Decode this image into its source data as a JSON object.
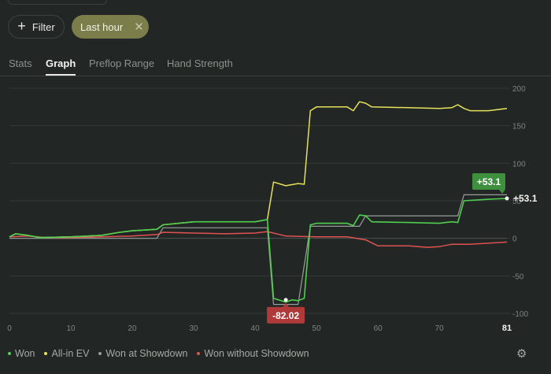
{
  "toolbar": {
    "filter_label": "Filter",
    "chip_label": "Last hour",
    "chip_close": "✕",
    "plus": "+"
  },
  "tabs": [
    {
      "label": "Stats",
      "active": false
    },
    {
      "label": "Graph",
      "active": true
    },
    {
      "label": "Preflop Range",
      "active": false
    },
    {
      "label": "Hand Strength",
      "active": false
    }
  ],
  "chart_data": {
    "type": "line",
    "xlim": [
      0,
      81
    ],
    "ylim": [
      -100,
      200
    ],
    "x_ticks": [
      "0",
      "10",
      "20",
      "30",
      "40",
      "50",
      "60",
      "70",
      "81"
    ],
    "y_ticks": [
      "200",
      "150",
      "100",
      "50",
      "0",
      "-50",
      "-100"
    ],
    "grid": true,
    "legend_position": "bottom-left",
    "annotations": [
      {
        "text": "+53.1",
        "x": 81,
        "y": 53.1,
        "color": "#3e8f3e"
      },
      {
        "text": "+53.1",
        "x": 81,
        "y": 53.1,
        "color": "none"
      },
      {
        "text": "-82.02",
        "x": 45,
        "y": -82.02,
        "color": "#b03a3a"
      }
    ],
    "series": [
      {
        "name": "Won at Showdown",
        "color": "#9a9e9a",
        "width": 1.2,
        "points": [
          [
            0,
            0
          ],
          [
            24,
            0
          ],
          [
            25,
            14
          ],
          [
            42,
            14
          ],
          [
            43,
            -88
          ],
          [
            47,
            -88
          ],
          [
            49,
            16
          ],
          [
            57,
            16
          ],
          [
            58,
            30
          ],
          [
            73,
            30
          ],
          [
            74,
            58
          ],
          [
            81,
            58
          ]
        ]
      },
      {
        "name": "Won without Showdown",
        "color": "#e05252",
        "width": 1.5,
        "points": [
          [
            0,
            2
          ],
          [
            3,
            3
          ],
          [
            6,
            1
          ],
          [
            10,
            1
          ],
          [
            15,
            2
          ],
          [
            20,
            3
          ],
          [
            24,
            5
          ],
          [
            25,
            8
          ],
          [
            30,
            7
          ],
          [
            35,
            6
          ],
          [
            40,
            7
          ],
          [
            42,
            9
          ],
          [
            45,
            3
          ],
          [
            50,
            2
          ],
          [
            55,
            2
          ],
          [
            58,
            -2
          ],
          [
            60,
            -10
          ],
          [
            65,
            -10
          ],
          [
            68,
            -12
          ],
          [
            70,
            -11
          ],
          [
            72,
            -8
          ],
          [
            75,
            -8
          ],
          [
            81,
            -5
          ]
        ]
      },
      {
        "name": "All-in EV",
        "color": "#e6e15a",
        "width": 1.5,
        "points": [
          [
            0,
            2
          ],
          [
            1,
            6
          ],
          [
            3,
            4
          ],
          [
            5,
            1
          ],
          [
            10,
            2
          ],
          [
            15,
            4
          ],
          [
            18,
            8
          ],
          [
            20,
            10
          ],
          [
            24,
            12
          ],
          [
            25,
            18
          ],
          [
            30,
            22
          ],
          [
            35,
            22
          ],
          [
            40,
            22
          ],
          [
            42,
            25
          ],
          [
            43,
            75
          ],
          [
            45,
            70
          ],
          [
            47,
            73
          ],
          [
            48,
            72
          ],
          [
            49,
            170
          ],
          [
            50,
            175
          ],
          [
            55,
            175
          ],
          [
            56,
            170
          ],
          [
            57,
            182
          ],
          [
            58,
            180
          ],
          [
            59,
            175
          ],
          [
            65,
            174
          ],
          [
            70,
            173
          ],
          [
            72,
            174
          ],
          [
            73,
            178
          ],
          [
            74,
            173
          ],
          [
            75,
            170
          ],
          [
            78,
            170
          ],
          [
            81,
            173
          ]
        ]
      },
      {
        "name": "Won",
        "color": "#4fce4f",
        "width": 1.6,
        "points": [
          [
            0,
            2
          ],
          [
            1,
            6
          ],
          [
            3,
            4
          ],
          [
            5,
            1
          ],
          [
            10,
            2
          ],
          [
            15,
            4
          ],
          [
            18,
            8
          ],
          [
            20,
            10
          ],
          [
            24,
            12
          ],
          [
            25,
            18
          ],
          [
            30,
            22
          ],
          [
            35,
            22
          ],
          [
            40,
            22
          ],
          [
            42,
            25
          ],
          [
            43,
            -80
          ],
          [
            45,
            -85
          ],
          [
            46,
            -82.02
          ],
          [
            47,
            -83
          ],
          [
            48,
            -80
          ],
          [
            49,
            18
          ],
          [
            50,
            20
          ],
          [
            55,
            20
          ],
          [
            56,
            17
          ],
          [
            57,
            31
          ],
          [
            58,
            30
          ],
          [
            59,
            22
          ],
          [
            65,
            21
          ],
          [
            70,
            20
          ],
          [
            72,
            22
          ],
          [
            73,
            21
          ],
          [
            74,
            50
          ],
          [
            78,
            52
          ],
          [
            81,
            53.1
          ]
        ]
      }
    ]
  },
  "legend": [
    {
      "label": "Won",
      "color": "#4fce4f"
    },
    {
      "label": "All-in EV",
      "color": "#e6e15a"
    },
    {
      "label": "Won at Showdown",
      "color": "#9a9e9a"
    },
    {
      "label": "Won without Showdown",
      "color": "#e05252"
    }
  ],
  "settings_icon": "gear-icon"
}
